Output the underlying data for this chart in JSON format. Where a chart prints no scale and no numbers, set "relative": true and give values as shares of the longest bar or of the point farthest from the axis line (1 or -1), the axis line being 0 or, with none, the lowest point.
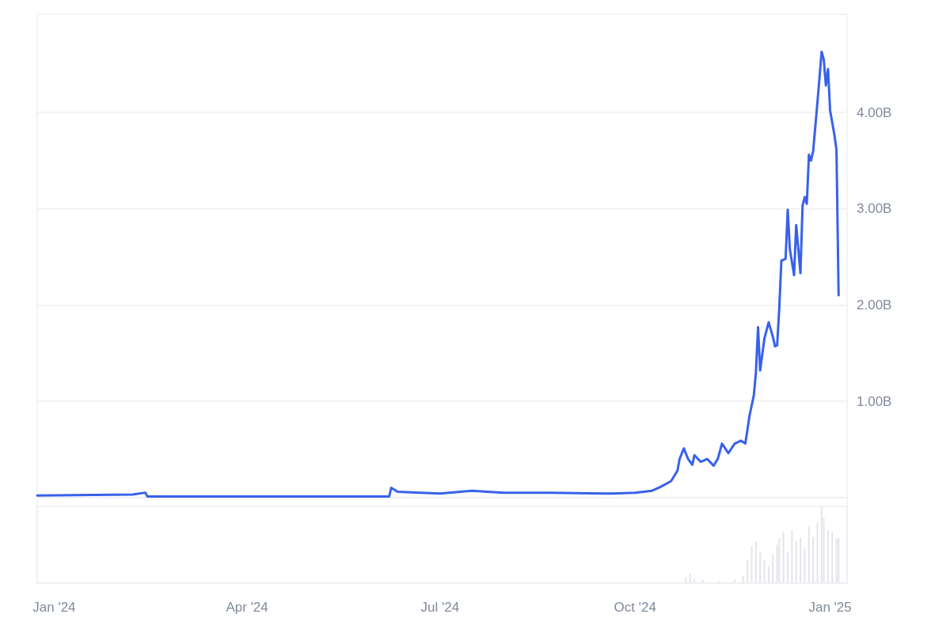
{
  "chart_data": [
    {
      "type": "line",
      "x": [
        "2023-12-24",
        "2024-02-07",
        "2024-02-13",
        "2024-02-14",
        "2024-06-07",
        "2024-06-08",
        "2024-06-11",
        "2024-07-01",
        "2024-07-16",
        "2024-07-31",
        "2024-08-22",
        "2024-09-20",
        "2024-10-01",
        "2024-10-09",
        "2024-10-13",
        "2024-10-18",
        "2024-10-21",
        "2024-10-22",
        "2024-10-24",
        "2024-10-26",
        "2024-10-28",
        "2024-10-29",
        "2024-11-01",
        "2024-11-04",
        "2024-11-07",
        "2024-11-09",
        "2024-11-11",
        "2024-11-14",
        "2024-11-17",
        "2024-11-20",
        "2024-11-22",
        "2024-11-24",
        "2024-11-26",
        "2024-11-27",
        "2024-11-28",
        "2024-11-29",
        "2024-12-01",
        "2024-12-03",
        "2024-12-05",
        "2024-12-06",
        "2024-12-07",
        "2024-12-08",
        "2024-12-09",
        "2024-12-11",
        "2024-12-12",
        "2024-12-13",
        "2024-12-15",
        "2024-12-16",
        "2024-12-18",
        "2024-12-19",
        "2024-12-20",
        "2024-12-21",
        "2024-12-22",
        "2024-12-23",
        "2024-12-24",
        "2024-12-26",
        "2024-12-28",
        "2024-12-29",
        "2024-12-30",
        "2024-12-31",
        "2025-01-01",
        "2025-01-03",
        "2025-01-04",
        "2025-01-05"
      ],
      "series": [
        {
          "color": "#3861ea",
          "values": [
            0.02,
            0.03,
            0.05,
            0.01,
            0.01,
            0.1,
            0.06,
            0.04,
            0.07,
            0.05,
            0.05,
            0.04,
            0.05,
            0.07,
            0.11,
            0.17,
            0.28,
            0.4,
            0.51,
            0.4,
            0.34,
            0.44,
            0.37,
            0.4,
            0.33,
            0.4,
            0.56,
            0.46,
            0.56,
            0.59,
            0.56,
            0.85,
            1.06,
            1.3,
            1.77,
            1.32,
            1.65,
            1.82,
            1.67,
            1.57,
            1.58,
            1.96,
            2.46,
            2.48,
            2.99,
            2.58,
            2.31,
            2.83,
            2.33,
            3.03,
            3.12,
            3.05,
            3.56,
            3.5,
            3.6,
            4.1,
            4.63,
            4.55,
            4.28,
            4.45,
            4.02,
            3.77,
            3.61,
            2.1
          ]
        }
      ],
      "xlim": [
        "2023-12-24",
        "2025-01-09"
      ],
      "xticks": [
        {
          "value": "2024-01-01",
          "label": "Jan '24"
        },
        {
          "value": "2024-04-01",
          "label": "Apr '24"
        },
        {
          "value": "2024-07-01",
          "label": "Jul '24"
        },
        {
          "value": "2024-10-01",
          "label": "Oct '24"
        },
        {
          "value": "2025-01-01",
          "label": "Jan '25"
        }
      ],
      "ylim": [
        -0.89,
        5.02
      ],
      "yticks": [
        {
          "value": 0,
          "label": null
        },
        {
          "value": 1,
          "label": "1.00B"
        },
        {
          "value": 2,
          "label": "2.00B"
        },
        {
          "value": 3,
          "label": "3.00B"
        },
        {
          "value": 4,
          "label": "4.00B"
        }
      ],
      "grid": "y",
      "marker": "none",
      "line_style": "solid"
    },
    {
      "type": "bar",
      "relative": true,
      "x": [
        "2024-10-25",
        "2024-10-27",
        "2024-10-29",
        "2024-11-02",
        "2024-11-10",
        "2024-11-17",
        "2024-11-21",
        "2024-11-23",
        "2024-11-25",
        "2024-11-27",
        "2024-11-29",
        "2024-12-01",
        "2024-12-03",
        "2024-12-05",
        "2024-12-07",
        "2024-12-08",
        "2024-12-10",
        "2024-12-12",
        "2024-12-14",
        "2024-12-16",
        "2024-12-18",
        "2024-12-20",
        "2024-12-22",
        "2024-12-24",
        "2024-12-26",
        "2024-12-28",
        "2024-12-29",
        "2024-12-31",
        "2025-01-02",
        "2025-01-04",
        "2025-01-05"
      ],
      "series": [
        {
          "color": "#e3e5ea",
          "values": [
            0.08,
            0.12,
            0.06,
            0.04,
            0.03,
            0.05,
            0.1,
            0.3,
            0.48,
            0.54,
            0.4,
            0.3,
            0.22,
            0.38,
            0.5,
            0.59,
            0.67,
            0.4,
            0.69,
            0.55,
            0.59,
            0.45,
            0.74,
            0.6,
            0.79,
            1.0,
            0.85,
            0.69,
            0.67,
            0.58,
            0.59
          ]
        }
      ],
      "xlim": [
        "2023-12-24",
        "2025-01-09"
      ]
    }
  ]
}
